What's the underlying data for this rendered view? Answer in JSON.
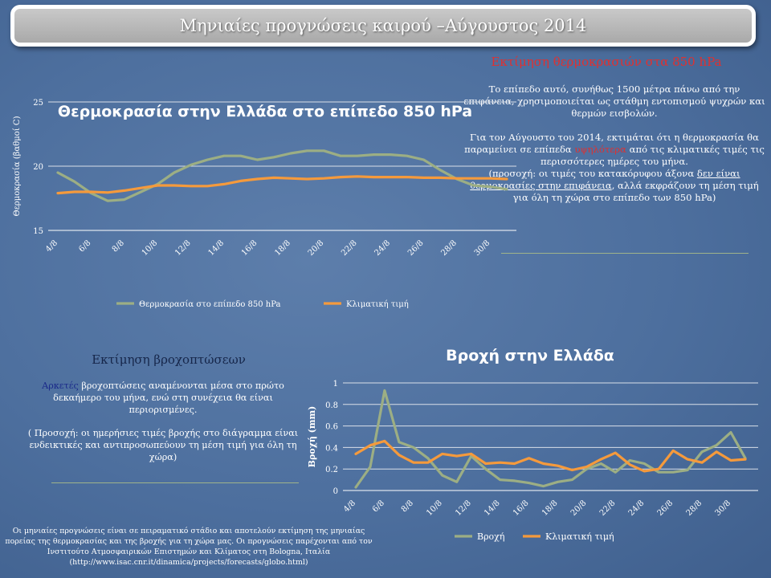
{
  "header": {
    "title": "Μηνιαίες προγνώσεις καιρού –Αύγουστος 2014"
  },
  "temperature_section": {
    "heading": "Εκτίμηση θερμοκρασιών στα 850 hPa",
    "para1": "Το επίπεδο αυτό, συνήθως 1500 μέτρα πάνω από την επιφάνεια, χρησιμοποιείται ως στάθμη εντοπισμού ψυχρών και θερμών εισβολών.",
    "para2_part1": "Για τον Αύγουστο του 2014, εκτιμάται ότι η θερμοκρασία θα παραμείνει σε επίπεδα ",
    "para2_highlight": "υψηλότερα",
    "para2_part2": " από τις κλιματικές τιμές τις περισσότερες ημέρες του μήνα.",
    "para3_part1": "(προσοχή: οι τιμές του κατακόρυφου άξονα ",
    "para3_underline": "δεν είναι θερμοκρασίες στην επιφάνεια",
    "para3_part2": ", αλλά εκφράζουν τη μέση τιμή για όλη τη χώρα στο επίπεδο των 850 hPa)"
  },
  "rain_section": {
    "heading": "Εκτίμηση βροχοπτώσεων",
    "para1_highlight": "Αρκετές",
    "para1_rest": " βροχοπτώσεις αναμένονται μέσα στο πρώτο δεκαήμερο του μήνα, ενώ στη συνέχεια θα είναι περιορισμένες.",
    "para2": "( Προσοχή: οι ημερήσιες τιμές βροχής στο διάγραμμα είναι ενδεικτικές και αντιπροσωπεύουν τη μέση τιμή για όλη τη χώρα)"
  },
  "footnote": "Οι μηνιαίες προγνώσεις είναι σε πειραματικό στάδιο και αποτελούν εκτίμηση της μηνιαίας πορείας της θερμοκρασίας και της βροχής για τη χώρα μας. Οι προγνώσεις παρέχονται από τον Ινστιτούτο Ατμοσφαιρικών Επιστημών και Κλίματος στη Bologna, Ιταλία (http://www.isac.cnr.it/dinamica/projects/forecasts/globo.html)",
  "colors": {
    "observed": "#9cae84",
    "climate": "#f59a3c",
    "axis": "#ffffff"
  },
  "chart_data": [
    {
      "type": "line",
      "title": "Θερμοκρασία στην Ελλάδα στο επίπεδο 850 hPa",
      "ylabel": "Θερμοκρασία (βαθμοί C)",
      "xlabel": "",
      "ylim": [
        15,
        25
      ],
      "yticks": [
        "25",
        "20",
        "15"
      ],
      "xtick_labels": [
        "4/8",
        "6/8",
        "8/8",
        "10/8",
        "12/8",
        "14/8",
        "16/8",
        "18/8",
        "20/8",
        "22/8",
        "24/8",
        "26/8",
        "28/8",
        "30/8"
      ],
      "x": [
        "4/8",
        "5/8",
        "6/8",
        "7/8",
        "8/8",
        "9/8",
        "10/8",
        "11/8",
        "12/8",
        "13/8",
        "14/8",
        "15/8",
        "16/8",
        "17/8",
        "18/8",
        "19/8",
        "20/8",
        "21/8",
        "22/8",
        "23/8",
        "24/8",
        "25/8",
        "26/8",
        "27/8",
        "28/8",
        "29/8",
        "30/8",
        "31/8"
      ],
      "series": [
        {
          "name": "Θερμοκρασία στο επίπεδο 850 hPa",
          "values": [
            19.5,
            18.8,
            17.9,
            17.3,
            17.4,
            18.0,
            18.6,
            19.5,
            20.1,
            20.5,
            20.8,
            20.8,
            20.5,
            20.7,
            21.0,
            21.2,
            21.2,
            20.8,
            20.8,
            20.9,
            20.9,
            20.8,
            20.5,
            19.7,
            19.0,
            18.5,
            18.4,
            18.2
          ]
        },
        {
          "name": "Κλιματική τιμή",
          "values": [
            17.9,
            18.0,
            18.0,
            17.95,
            18.1,
            18.3,
            18.5,
            18.5,
            18.45,
            18.45,
            18.6,
            18.85,
            19.0,
            19.1,
            19.05,
            19.0,
            19.05,
            19.15,
            19.2,
            19.15,
            19.15,
            19.15,
            19.1,
            19.1,
            19.05,
            19.05,
            19.05,
            19.0
          ]
        }
      ],
      "legend": "bottom"
    },
    {
      "type": "line",
      "title": "Βροχή στην Ελλάδα",
      "ylabel": "Βροχή (mm)",
      "xlabel": "",
      "ylim": [
        0,
        1
      ],
      "yticks": [
        "1",
        "0.8",
        "0.6",
        "0.4",
        "0.2",
        "0"
      ],
      "xtick_labels": [
        "4/8",
        "6/8",
        "8/8",
        "10/8",
        "12/8",
        "14/8",
        "16/8",
        "18/8",
        "20/8",
        "22/8",
        "24/8",
        "26/8",
        "28/8",
        "30/8"
      ],
      "x": [
        "4/8",
        "5/8",
        "6/8",
        "7/8",
        "8/8",
        "9/8",
        "10/8",
        "11/8",
        "12/8",
        "13/8",
        "14/8",
        "15/8",
        "16/8",
        "17/8",
        "18/8",
        "19/8",
        "20/8",
        "21/8",
        "22/8",
        "23/8",
        "24/8",
        "25/8",
        "26/8",
        "27/8",
        "28/8",
        "29/8",
        "30/8",
        "31/8"
      ],
      "series": [
        {
          "name": "Βροχή",
          "values": [
            0.03,
            0.22,
            0.93,
            0.45,
            0.4,
            0.3,
            0.14,
            0.08,
            0.32,
            0.2,
            0.1,
            0.09,
            0.07,
            0.04,
            0.08,
            0.1,
            0.2,
            0.25,
            0.17,
            0.28,
            0.25,
            0.17,
            0.17,
            0.19,
            0.36,
            0.42,
            0.54,
            0.3
          ]
        },
        {
          "name": "Κλιματική τιμή",
          "values": [
            0.34,
            0.42,
            0.46,
            0.33,
            0.26,
            0.26,
            0.34,
            0.32,
            0.34,
            0.25,
            0.26,
            0.25,
            0.3,
            0.25,
            0.23,
            0.19,
            0.22,
            0.29,
            0.35,
            0.24,
            0.18,
            0.2,
            0.37,
            0.29,
            0.26,
            0.36,
            0.28,
            0.29
          ]
        }
      ],
      "legend": "bottom"
    }
  ]
}
